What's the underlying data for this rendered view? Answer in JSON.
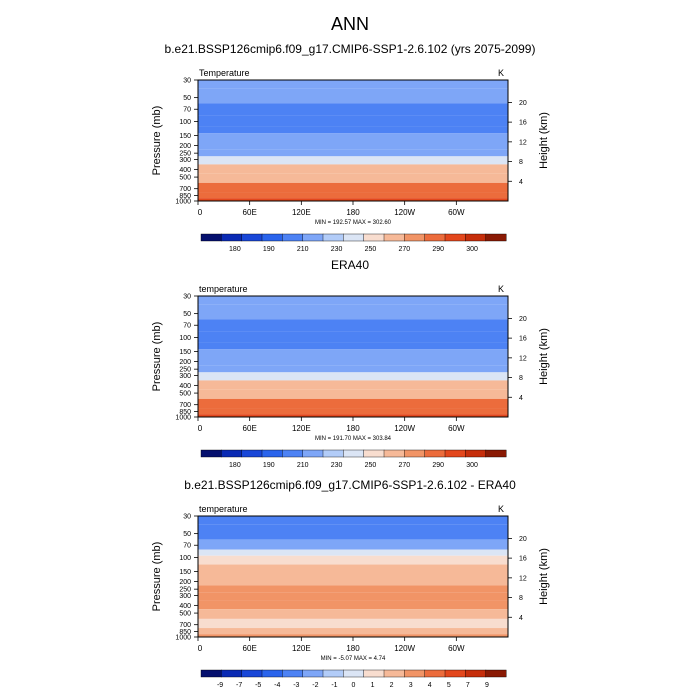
{
  "figure_title": "ANN",
  "chart_data": [
    {
      "type": "heatmap",
      "title": "b.e21.BSSP126cmip6.f09_g17.CMIP6-SSP1-2.6.102 (yrs 2075-2099)",
      "variable": "Temperature",
      "units": "K",
      "stats": "MIN = 192.57  MAX = 302.60",
      "ylabel": "Pressure (mb)",
      "ylabel_right": "Height (km)",
      "x_ticks": [
        "0",
        "60E",
        "120E",
        "180",
        "120W",
        "60W"
      ],
      "y_ticks": [
        "30",
        "50",
        "70",
        "100",
        "150",
        "200",
        "250",
        "300",
        "400",
        "500",
        "700",
        "850",
        "1000"
      ],
      "height_ticks": [
        "20",
        "16",
        "12",
        "8",
        "4"
      ],
      "colorbar_labels": [
        "180",
        "190",
        "210",
        "230",
        "250",
        "270",
        "290",
        "300"
      ],
      "colorbar_colors": [
        "#05106e",
        "#0a2ab4",
        "#1947d8",
        "#2a64ec",
        "#4d82f4",
        "#7ea6f7",
        "#b2ccf8",
        "#dbe5f5",
        "#f8ddcf",
        "#f6b998",
        "#f19466",
        "#ec6c3c",
        "#e3471c",
        "#c62e0b",
        "#8a1a04"
      ],
      "profile": [
        {
          "p": 30,
          "v": 216
        },
        {
          "p": 50,
          "v": 212
        },
        {
          "p": 70,
          "v": 205
        },
        {
          "p": 100,
          "v": 200
        },
        {
          "p": 130,
          "v": 205
        },
        {
          "p": 150,
          "v": 211
        },
        {
          "p": 200,
          "v": 220
        },
        {
          "p": 250,
          "v": 227
        },
        {
          "p": 300,
          "v": 236
        },
        {
          "p": 400,
          "v": 250
        },
        {
          "p": 500,
          "v": 260
        },
        {
          "p": 700,
          "v": 274
        },
        {
          "p": 850,
          "v": 282
        },
        {
          "p": 1000,
          "v": 290
        }
      ]
    },
    {
      "type": "heatmap",
      "title": "ERA40",
      "variable": "temperature",
      "units": "K",
      "stats": "MIN = 191.70  MAX = 303.84",
      "ylabel": "Pressure (mb)",
      "ylabel_right": "Height (km)",
      "x_ticks": [
        "0",
        "60E",
        "120E",
        "180",
        "120W",
        "60W"
      ],
      "y_ticks": [
        "30",
        "50",
        "70",
        "100",
        "150",
        "200",
        "250",
        "300",
        "400",
        "500",
        "700",
        "850",
        "1000"
      ],
      "height_ticks": [
        "20",
        "16",
        "12",
        "8",
        "4"
      ],
      "colorbar_labels": [
        "180",
        "190",
        "210",
        "230",
        "250",
        "270",
        "290",
        "300"
      ],
      "colorbar_colors": [
        "#05106e",
        "#0a2ab4",
        "#1947d8",
        "#2a64ec",
        "#4d82f4",
        "#7ea6f7",
        "#b2ccf8",
        "#dbe5f5",
        "#f8ddcf",
        "#f6b998",
        "#f19466",
        "#ec6c3c",
        "#e3471c",
        "#c62e0b",
        "#8a1a04"
      ],
      "profile": [
        {
          "p": 30,
          "v": 222
        },
        {
          "p": 50,
          "v": 214
        },
        {
          "p": 70,
          "v": 205
        },
        {
          "p": 100,
          "v": 200
        },
        {
          "p": 130,
          "v": 205
        },
        {
          "p": 150,
          "v": 211
        },
        {
          "p": 200,
          "v": 220
        },
        {
          "p": 250,
          "v": 227
        },
        {
          "p": 300,
          "v": 236
        },
        {
          "p": 400,
          "v": 250
        },
        {
          "p": 500,
          "v": 260
        },
        {
          "p": 700,
          "v": 274
        },
        {
          "p": 850,
          "v": 282
        },
        {
          "p": 1000,
          "v": 290
        }
      ]
    },
    {
      "type": "heatmap",
      "title": "b.e21.BSSP126cmip6.f09_g17.CMIP6-SSP1-2.6.102 - ERA40",
      "variable": "temperature",
      "units": "K",
      "stats": "MIN =  -5.07  MAX =   4.74",
      "ylabel": "Pressure (mb)",
      "ylabel_right": "Height (km)",
      "x_ticks": [
        "0",
        "60E",
        "120E",
        "180",
        "120W",
        "60W"
      ],
      "y_ticks": [
        "30",
        "50",
        "70",
        "100",
        "150",
        "200",
        "250",
        "300",
        "400",
        "500",
        "700",
        "850",
        "1000"
      ],
      "height_ticks": [
        "20",
        "16",
        "12",
        "8",
        "4"
      ],
      "colorbar_labels": [
        "-9",
        "-7",
        "-5",
        "-4",
        "-3",
        "-2",
        "-1",
        "0",
        "1",
        "2",
        "3",
        "4",
        "5",
        "7",
        "9"
      ],
      "colorbar_colors": [
        "#05106e",
        "#0a2ab4",
        "#1947d8",
        "#2a64ec",
        "#4d82f4",
        "#7ea6f7",
        "#b2ccf8",
        "#dbe5f5",
        "#f8ddcf",
        "#f6b998",
        "#f19466",
        "#ec6c3c",
        "#e3471c",
        "#c62e0b",
        "#8a1a04"
      ],
      "profile": [
        {
          "p": 30,
          "v": -3.5
        },
        {
          "p": 50,
          "v": -3.5
        },
        {
          "p": 70,
          "v": -2.5
        },
        {
          "p": 90,
          "v": -0.5
        },
        {
          "p": 100,
          "v": 1.5
        },
        {
          "p": 150,
          "v": 2.5
        },
        {
          "p": 200,
          "v": 2.5
        },
        {
          "p": 250,
          "v": 3.5
        },
        {
          "p": 300,
          "v": 3.5
        },
        {
          "p": 400,
          "v": 3.5
        },
        {
          "p": 500,
          "v": 2.5
        },
        {
          "p": 700,
          "v": 1.5
        },
        {
          "p": 850,
          "v": 2.5
        },
        {
          "p": 1000,
          "v": 3.5
        }
      ]
    }
  ]
}
